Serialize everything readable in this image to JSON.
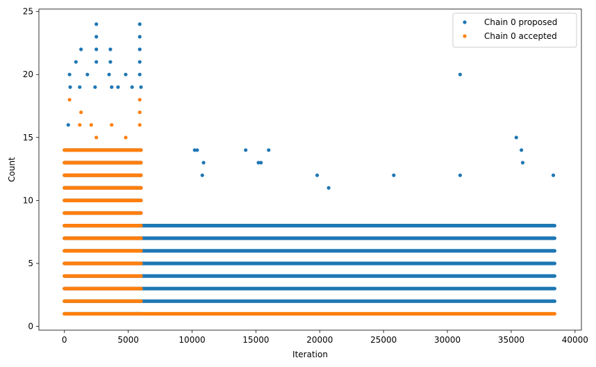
{
  "chart_data": {
    "type": "scatter",
    "xlabel": "Iteration",
    "ylabel": "Count",
    "xlim": [
      -2000,
      40500
    ],
    "ylim": [
      -0.3,
      25.2
    ],
    "xticks": [
      0,
      5000,
      10000,
      15000,
      20000,
      25000,
      30000,
      35000,
      40000
    ],
    "yticks": [
      0,
      5,
      10,
      15,
      20,
      25
    ],
    "legend_position": "top-right",
    "grid": false,
    "series": [
      {
        "name": "Chain 0 proposed",
        "color": "#1f77b4",
        "x_range": [
          0,
          38400
        ],
        "bands": [
          {
            "y": 1,
            "x": [
              0,
              6000
            ]
          },
          {
            "y": 2,
            "x": [
              0,
              38400
            ]
          },
          {
            "y": 3,
            "x": [
              0,
              38400
            ]
          },
          {
            "y": 4,
            "x": [
              0,
              38400
            ]
          },
          {
            "y": 5,
            "x": [
              0,
              38400
            ]
          },
          {
            "y": 6,
            "x": [
              0,
              38400
            ]
          },
          {
            "y": 7,
            "x": [
              0,
              38400
            ]
          },
          {
            "y": 8,
            "x": [
              0,
              38400
            ]
          },
          {
            "y": 9,
            "x": [
              0,
              6000
            ]
          },
          {
            "y": 10,
            "x": [
              0,
              6000
            ]
          },
          {
            "y": 11,
            "x": [
              0,
              6000
            ]
          },
          {
            "y": 12,
            "x": [
              0,
              6000
            ]
          },
          {
            "y": 13,
            "x": [
              0,
              6000
            ]
          },
          {
            "y": 14,
            "x": [
              0,
              6000
            ]
          }
        ],
        "peaks": [
          {
            "x": 300,
            "y": 16
          },
          {
            "x": 400,
            "y": 20
          },
          {
            "x": 450,
            "y": 19
          },
          {
            "x": 900,
            "y": 21
          },
          {
            "x": 1300,
            "y": 22
          },
          {
            "x": 1200,
            "y": 19
          },
          {
            "x": 1800,
            "y": 20
          },
          {
            "x": 2500,
            "y": 24
          },
          {
            "x": 2500,
            "y": 23
          },
          {
            "x": 2500,
            "y": 22
          },
          {
            "x": 2500,
            "y": 21
          },
          {
            "x": 2400,
            "y": 19
          },
          {
            "x": 3600,
            "y": 22
          },
          {
            "x": 3600,
            "y": 21
          },
          {
            "x": 3500,
            "y": 20
          },
          {
            "x": 3700,
            "y": 19
          },
          {
            "x": 4200,
            "y": 19
          },
          {
            "x": 4800,
            "y": 20
          },
          {
            "x": 5300,
            "y": 19
          },
          {
            "x": 5900,
            "y": 24
          },
          {
            "x": 5900,
            "y": 23
          },
          {
            "x": 5900,
            "y": 22
          },
          {
            "x": 5900,
            "y": 21
          },
          {
            "x": 5900,
            "y": 20
          },
          {
            "x": 6000,
            "y": 19
          },
          {
            "x": 10200,
            "y": 14
          },
          {
            "x": 10400,
            "y": 14
          },
          {
            "x": 10900,
            "y": 13
          },
          {
            "x": 10800,
            "y": 12
          },
          {
            "x": 14200,
            "y": 14
          },
          {
            "x": 15200,
            "y": 13
          },
          {
            "x": 15400,
            "y": 13
          },
          {
            "x": 16000,
            "y": 14
          },
          {
            "x": 19800,
            "y": 12
          },
          {
            "x": 20700,
            "y": 11
          },
          {
            "x": 25800,
            "y": 12
          },
          {
            "x": 31000,
            "y": 20
          },
          {
            "x": 31000,
            "y": 12
          },
          {
            "x": 35400,
            "y": 15
          },
          {
            "x": 35800,
            "y": 14
          },
          {
            "x": 35900,
            "y": 13
          },
          {
            "x": 38300,
            "y": 12
          }
        ]
      },
      {
        "name": "Chain 0 accepted",
        "color": "#ff7f0e",
        "x_range": [
          0,
          38400
        ],
        "bands": [
          {
            "y": 1,
            "x": [
              0,
              38400
            ]
          },
          {
            "y": 2,
            "x": [
              0,
              6000
            ]
          },
          {
            "y": 3,
            "x": [
              0,
              6000
            ]
          },
          {
            "y": 4,
            "x": [
              0,
              6000
            ]
          },
          {
            "y": 5,
            "x": [
              0,
              6000
            ]
          },
          {
            "y": 6,
            "x": [
              0,
              6000
            ]
          },
          {
            "y": 7,
            "x": [
              0,
              6000
            ]
          },
          {
            "y": 8,
            "x": [
              0,
              6000
            ]
          },
          {
            "y": 9,
            "x": [
              0,
              6000
            ]
          },
          {
            "y": 10,
            "x": [
              0,
              6000
            ]
          },
          {
            "y": 11,
            "x": [
              0,
              6000
            ]
          },
          {
            "y": 12,
            "x": [
              0,
              6000
            ]
          },
          {
            "y": 13,
            "x": [
              0,
              6000
            ]
          },
          {
            "y": 14,
            "x": [
              0,
              6000
            ]
          }
        ],
        "peaks": [
          {
            "x": 400,
            "y": 18
          },
          {
            "x": 1300,
            "y": 17
          },
          {
            "x": 1200,
            "y": 16
          },
          {
            "x": 2100,
            "y": 16
          },
          {
            "x": 2500,
            "y": 15
          },
          {
            "x": 3700,
            "y": 16
          },
          {
            "x": 4800,
            "y": 15
          },
          {
            "x": 5900,
            "y": 18
          },
          {
            "x": 5900,
            "y": 17
          },
          {
            "x": 5900,
            "y": 16
          }
        ]
      }
    ]
  }
}
